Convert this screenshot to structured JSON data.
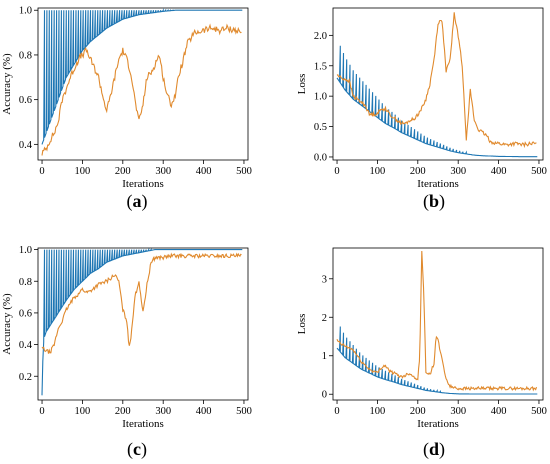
{
  "figure": {
    "colors": {
      "train": "#1f77b4",
      "val": "#e08a2e",
      "axis": "#000000"
    },
    "panels": [
      {
        "letter": "a",
        "open": "(",
        "close": ")"
      },
      {
        "letter": "b",
        "open": "(",
        "close": ")"
      },
      {
        "letter": "c",
        "open": "(",
        "close": ")"
      },
      {
        "letter": "d",
        "open": "(",
        "close": ")"
      }
    ]
  },
  "chart_data": [
    {
      "id": "a",
      "type": "line",
      "xlabel": "Iterations",
      "ylabel": "Accuracy (%)",
      "xlim": [
        -10,
        510
      ],
      "ylim": [
        0.33,
        1.01
      ],
      "xticks": [
        0,
        100,
        200,
        300,
        400,
        500
      ],
      "yticks": [
        0.4,
        0.6,
        0.8,
        1.0
      ],
      "ytick_labels": [
        "0.4",
        "0.6",
        "0.8",
        "1.0"
      ],
      "series": [
        {
          "color": "#1f77b4",
          "x": [
            0,
            10,
            20,
            30,
            40,
            50,
            60,
            80,
            100,
            120,
            140,
            160,
            180,
            200,
            220,
            240,
            260,
            280,
            300,
            330,
            360,
            400,
            450,
            497
          ],
          "y": [
            0.4,
            0.45,
            0.5,
            0.55,
            0.6,
            0.65,
            0.7,
            0.76,
            0.82,
            0.86,
            0.89,
            0.92,
            0.94,
            0.96,
            0.97,
            0.98,
            0.985,
            0.99,
            0.995,
            1.0,
            1.0,
            1.0,
            1.0,
            1.0
          ],
          "spike_to": 1.0,
          "spike_every": 6,
          "spike_end": 330
        },
        {
          "color": "#e08a2e",
          "x": [
            0,
            10,
            20,
            30,
            40,
            50,
            60,
            70,
            80,
            90,
            100,
            110,
            120,
            130,
            140,
            150,
            160,
            170,
            180,
            190,
            200,
            210,
            220,
            230,
            240,
            250,
            260,
            270,
            280,
            290,
            300,
            310,
            320,
            330,
            340,
            350,
            360,
            370,
            380,
            400,
            420,
            440,
            460,
            480,
            495
          ],
          "y": [
            0.36,
            0.38,
            0.42,
            0.45,
            0.5,
            0.6,
            0.65,
            0.7,
            0.74,
            0.78,
            0.8,
            0.82,
            0.78,
            0.74,
            0.7,
            0.62,
            0.55,
            0.62,
            0.7,
            0.78,
            0.82,
            0.78,
            0.72,
            0.6,
            0.5,
            0.58,
            0.7,
            0.72,
            0.76,
            0.8,
            0.7,
            0.62,
            0.58,
            0.62,
            0.72,
            0.78,
            0.85,
            0.88,
            0.9,
            0.91,
            0.92,
            0.91,
            0.92,
            0.91,
            0.9
          ],
          "jitter": 0.015
        }
      ]
    },
    {
      "id": "b",
      "type": "line",
      "xlabel": "Iterations",
      "ylabel": "Loss",
      "xlim": [
        -10,
        510
      ],
      "ylim": [
        -0.05,
        2.45
      ],
      "xticks": [
        0,
        100,
        200,
        300,
        400,
        500
      ],
      "yticks": [
        0.0,
        0.5,
        1.0,
        1.5,
        2.0
      ],
      "ytick_labels": [
        "0.0",
        "0.5",
        "1.0",
        "1.5",
        "2.0"
      ],
      "series": [
        {
          "color": "#1f77b4",
          "x": [
            0,
            20,
            40,
            60,
            80,
            100,
            120,
            140,
            160,
            180,
            200,
            220,
            240,
            260,
            280,
            300,
            320,
            340,
            360,
            400,
            450,
            497
          ],
          "y": [
            1.3,
            1.1,
            0.95,
            0.85,
            0.75,
            0.65,
            0.55,
            0.48,
            0.4,
            0.34,
            0.28,
            0.22,
            0.18,
            0.14,
            0.1,
            0.07,
            0.05,
            0.03,
            0.02,
            0.01,
            0.005,
            0.005
          ],
          "spike_to_mult": 1.5,
          "spike_every": 8,
          "spike_end": 320
        },
        {
          "color": "#e08a2e",
          "x": [
            0,
            10,
            20,
            30,
            40,
            50,
            60,
            70,
            80,
            90,
            100,
            110,
            120,
            130,
            140,
            150,
            160,
            170,
            180,
            190,
            200,
            210,
            220,
            230,
            240,
            250,
            260,
            270,
            280,
            290,
            300,
            310,
            320,
            330,
            340,
            350,
            360,
            370,
            380,
            400,
            420,
            440,
            460,
            480,
            495
          ],
          "y": [
            1.35,
            1.3,
            1.28,
            1.25,
            1.0,
            0.95,
            0.9,
            0.85,
            0.7,
            0.7,
            0.72,
            0.78,
            0.8,
            0.7,
            0.65,
            0.6,
            0.55,
            0.55,
            0.6,
            0.62,
            0.7,
            0.8,
            0.95,
            1.2,
            1.6,
            2.2,
            2.25,
            1.4,
            1.6,
            2.35,
            2.0,
            1.5,
            0.3,
            1.1,
            0.6,
            0.45,
            0.4,
            0.35,
            0.25,
            0.22,
            0.2,
            0.22,
            0.2,
            0.22,
            0.22
          ],
          "jitter": 0.03
        }
      ]
    },
    {
      "id": "c",
      "type": "line",
      "xlabel": "Iterations",
      "ylabel": "Accuracy (%)",
      "xlim": [
        -10,
        510
      ],
      "ylim": [
        0.05,
        1.01
      ],
      "xticks": [
        0,
        100,
        200,
        300,
        400,
        500
      ],
      "yticks": [
        0.2,
        0.4,
        0.6,
        0.8,
        1.0
      ],
      "ytick_labels": [
        "0.2",
        "0.4",
        "0.6",
        "0.8",
        "1.0"
      ],
      "series": [
        {
          "color": "#1f77b4",
          "x": [
            0,
            3,
            6,
            10,
            20,
            30,
            40,
            60,
            80,
            100,
            120,
            140,
            160,
            180,
            200,
            220,
            240,
            260,
            280,
            300,
            350,
            400,
            450,
            497
          ],
          "y": [
            0.08,
            0.4,
            0.45,
            0.48,
            0.52,
            0.56,
            0.6,
            0.68,
            0.75,
            0.8,
            0.85,
            0.88,
            0.92,
            0.94,
            0.96,
            0.97,
            0.98,
            0.99,
            1.0,
            1.0,
            1.0,
            1.0,
            1.0,
            1.0
          ],
          "spike_to": 1.0,
          "spike_every": 6,
          "spike_end": 270
        },
        {
          "color": "#e08a2e",
          "x": [
            0,
            10,
            20,
            30,
            40,
            50,
            60,
            70,
            80,
            90,
            100,
            110,
            120,
            130,
            140,
            150,
            160,
            170,
            180,
            190,
            200,
            210,
            215,
            220,
            230,
            240,
            250,
            260,
            270,
            280,
            300,
            320,
            340,
            360,
            380,
            400,
            420,
            440,
            460,
            480,
            495
          ],
          "y": [
            0.38,
            0.36,
            0.35,
            0.4,
            0.5,
            0.55,
            0.62,
            0.66,
            0.7,
            0.72,
            0.75,
            0.73,
            0.74,
            0.76,
            0.78,
            0.79,
            0.8,
            0.82,
            0.84,
            0.8,
            0.62,
            0.55,
            0.38,
            0.45,
            0.7,
            0.8,
            0.6,
            0.78,
            0.92,
            0.95,
            0.95,
            0.96,
            0.96,
            0.96,
            0.96,
            0.96,
            0.96,
            0.96,
            0.96,
            0.96,
            0.96
          ],
          "jitter": 0.012
        }
      ]
    },
    {
      "id": "d",
      "type": "line",
      "xlabel": "Iterations",
      "ylabel": "Loss",
      "xlim": [
        -10,
        510
      ],
      "ylim": [
        -0.15,
        3.8
      ],
      "xticks": [
        0,
        100,
        200,
        300,
        400,
        500
      ],
      "yticks": [
        0,
        1,
        2,
        3
      ],
      "ytick_labels": [
        "0",
        "1",
        "2",
        "3"
      ],
      "series": [
        {
          "color": "#1f77b4",
          "x": [
            0,
            20,
            40,
            60,
            80,
            100,
            120,
            140,
            160,
            180,
            200,
            220,
            240,
            260,
            280,
            300,
            350,
            400,
            450,
            497
          ],
          "y": [
            1.2,
            0.95,
            0.8,
            0.65,
            0.55,
            0.45,
            0.38,
            0.32,
            0.25,
            0.2,
            0.15,
            0.1,
            0.07,
            0.04,
            0.02,
            0.01,
            0.005,
            0.005,
            0.005,
            0.005
          ],
          "spike_to_mult": 1.6,
          "spike_every": 8,
          "spike_end": 260
        },
        {
          "color": "#e08a2e",
          "x": [
            0,
            10,
            20,
            30,
            40,
            50,
            60,
            70,
            80,
            90,
            100,
            110,
            120,
            130,
            140,
            150,
            160,
            170,
            180,
            190,
            200,
            205,
            210,
            215,
            220,
            230,
            240,
            245,
            250,
            260,
            270,
            280,
            300,
            320,
            340,
            360,
            380,
            400,
            420,
            440,
            460,
            480,
            495
          ],
          "y": [
            1.4,
            1.3,
            1.25,
            1.2,
            1.15,
            1.0,
            0.85,
            0.75,
            0.65,
            0.6,
            0.55,
            0.7,
            0.75,
            0.6,
            0.55,
            0.5,
            0.45,
            0.5,
            0.55,
            0.45,
            0.4,
            1.0,
            3.75,
            2.5,
            0.6,
            0.5,
            0.8,
            1.5,
            1.4,
            0.9,
            0.4,
            0.2,
            0.15,
            0.15,
            0.15,
            0.15,
            0.15,
            0.15,
            0.15,
            0.15,
            0.15,
            0.15,
            0.15
          ],
          "jitter": 0.04
        }
      ]
    }
  ]
}
